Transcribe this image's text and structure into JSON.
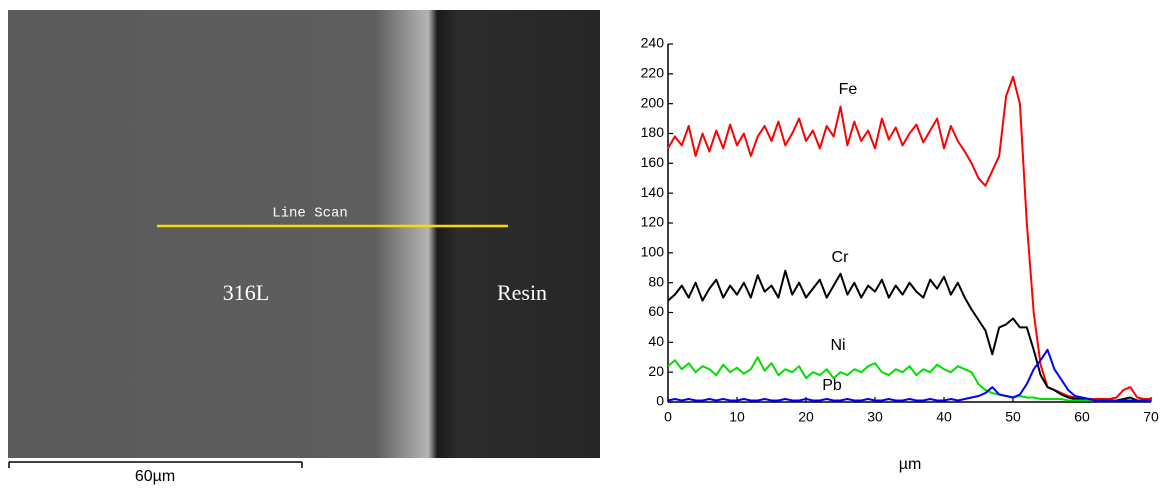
{
  "micrograph": {
    "line_label": "Line Scan",
    "left_label": "316L",
    "right_label": "Resin",
    "scale_bar": "60µm"
  },
  "chart_data": {
    "type": "line",
    "x_label": "µm",
    "x": [
      0,
      1,
      2,
      3,
      4,
      5,
      6,
      7,
      8,
      9,
      10,
      11,
      12,
      13,
      14,
      15,
      16,
      17,
      18,
      19,
      20,
      21,
      22,
      23,
      24,
      25,
      26,
      27,
      28,
      29,
      30,
      31,
      32,
      33,
      34,
      35,
      36,
      37,
      38,
      39,
      40,
      41,
      42,
      43,
      44,
      45,
      46,
      47,
      48,
      49,
      50,
      51,
      52,
      53,
      54,
      55,
      56,
      57,
      58,
      59,
      60,
      61,
      62,
      63,
      64,
      65,
      66,
      67,
      68,
      69,
      70
    ],
    "series": [
      {
        "name": "Fe",
        "color": "#ff0000",
        "values": [
          170,
          178,
          172,
          185,
          165,
          180,
          168,
          182,
          170,
          186,
          172,
          180,
          165,
          178,
          185,
          175,
          188,
          172,
          180,
          190,
          175,
          182,
          170,
          185,
          178,
          198,
          172,
          188,
          175,
          182,
          170,
          190,
          176,
          184,
          172,
          180,
          186,
          174,
          182,
          190,
          170,
          185,
          175,
          168,
          160,
          150,
          145,
          155,
          165,
          205,
          218,
          200,
          120,
          60,
          25,
          10,
          8,
          6,
          4,
          3,
          2,
          2,
          2,
          2,
          2,
          3,
          8,
          10,
          3,
          2,
          2
        ]
      },
      {
        "name": "Cr",
        "color": "#000000",
        "values": [
          68,
          72,
          78,
          70,
          80,
          68,
          76,
          82,
          70,
          78,
          72,
          80,
          70,
          85,
          74,
          78,
          70,
          88,
          72,
          80,
          70,
          76,
          82,
          70,
          78,
          86,
          72,
          80,
          70,
          78,
          74,
          82,
          70,
          78,
          72,
          80,
          74,
          70,
          82,
          76,
          84,
          72,
          80,
          70,
          62,
          55,
          48,
          32,
          50,
          52,
          56,
          50,
          50,
          35,
          18,
          10,
          8,
          5,
          3,
          2,
          2,
          1,
          1,
          1,
          1,
          1,
          2,
          3,
          1,
          1,
          1
        ]
      },
      {
        "name": "Ni",
        "color": "#00e000",
        "values": [
          24,
          28,
          22,
          26,
          20,
          24,
          22,
          18,
          25,
          20,
          23,
          19,
          22,
          30,
          21,
          26,
          18,
          22,
          20,
          24,
          16,
          20,
          18,
          22,
          16,
          20,
          18,
          22,
          20,
          24,
          26,
          20,
          18,
          22,
          20,
          24,
          18,
          22,
          20,
          25,
          22,
          20,
          24,
          22,
          20,
          12,
          8,
          6,
          5,
          4,
          3,
          4,
          3,
          3,
          2,
          2,
          2,
          2,
          1,
          1,
          1,
          1,
          1,
          1,
          1,
          1,
          1,
          1,
          1,
          1,
          1
        ]
      },
      {
        "name": "Pb",
        "color": "#0000ff",
        "values": [
          1,
          2,
          1,
          2,
          1,
          1,
          2,
          1,
          2,
          1,
          1,
          2,
          1,
          1,
          2,
          1,
          1,
          2,
          1,
          1,
          2,
          1,
          1,
          2,
          1,
          1,
          2,
          1,
          1,
          2,
          1,
          1,
          2,
          1,
          1,
          2,
          1,
          1,
          2,
          1,
          1,
          2,
          1,
          2,
          3,
          4,
          6,
          10,
          5,
          4,
          3,
          5,
          12,
          22,
          28,
          35,
          22,
          15,
          8,
          4,
          3,
          2,
          1,
          1,
          1,
          1,
          1,
          1,
          1,
          1,
          1
        ]
      }
    ],
    "xlim": [
      0,
      70
    ],
    "xticks": [
      0,
      10,
      20,
      30,
      40,
      50,
      60,
      70
    ],
    "ylim": [
      0,
      240
    ],
    "yticks": [
      0,
      20,
      40,
      60,
      80,
      100,
      120,
      140,
      160,
      180,
      200,
      220,
      240
    ]
  }
}
